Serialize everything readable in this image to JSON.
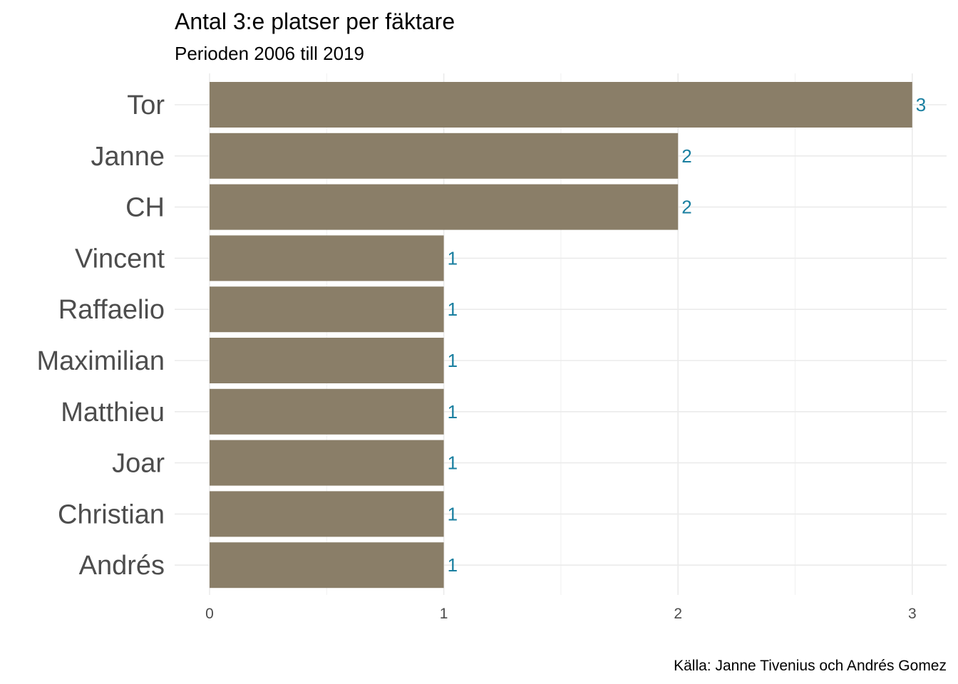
{
  "chart_data": {
    "type": "bar",
    "orientation": "horizontal",
    "title": "Antal 3:e platser per fäktare",
    "subtitle": "Perioden 2006 till 2019",
    "caption": "Källa: Janne Tivenius och Andrés Gomez",
    "categories": [
      "Tor",
      "Janne",
      "CH",
      "Vincent",
      "Raffaelio",
      "Maximilian",
      "Matthieu",
      "Joar",
      "Christian",
      "Andrés"
    ],
    "values": [
      3,
      2,
      2,
      1,
      1,
      1,
      1,
      1,
      1,
      1
    ],
    "data_labels": [
      "3",
      "2",
      "2",
      "1",
      "1",
      "1",
      "1",
      "1",
      "1",
      "1"
    ],
    "xlabel": "",
    "ylabel": "",
    "xlim": [
      0,
      3
    ],
    "x_ticks": [
      "0",
      "1",
      "2",
      "3"
    ],
    "grid": true,
    "legend": "none",
    "colors": {
      "bar": "#8a7e68",
      "data_label": "#1a7fa0",
      "axis_text": "#4d4d4d",
      "grid": "#ebebeb"
    }
  }
}
